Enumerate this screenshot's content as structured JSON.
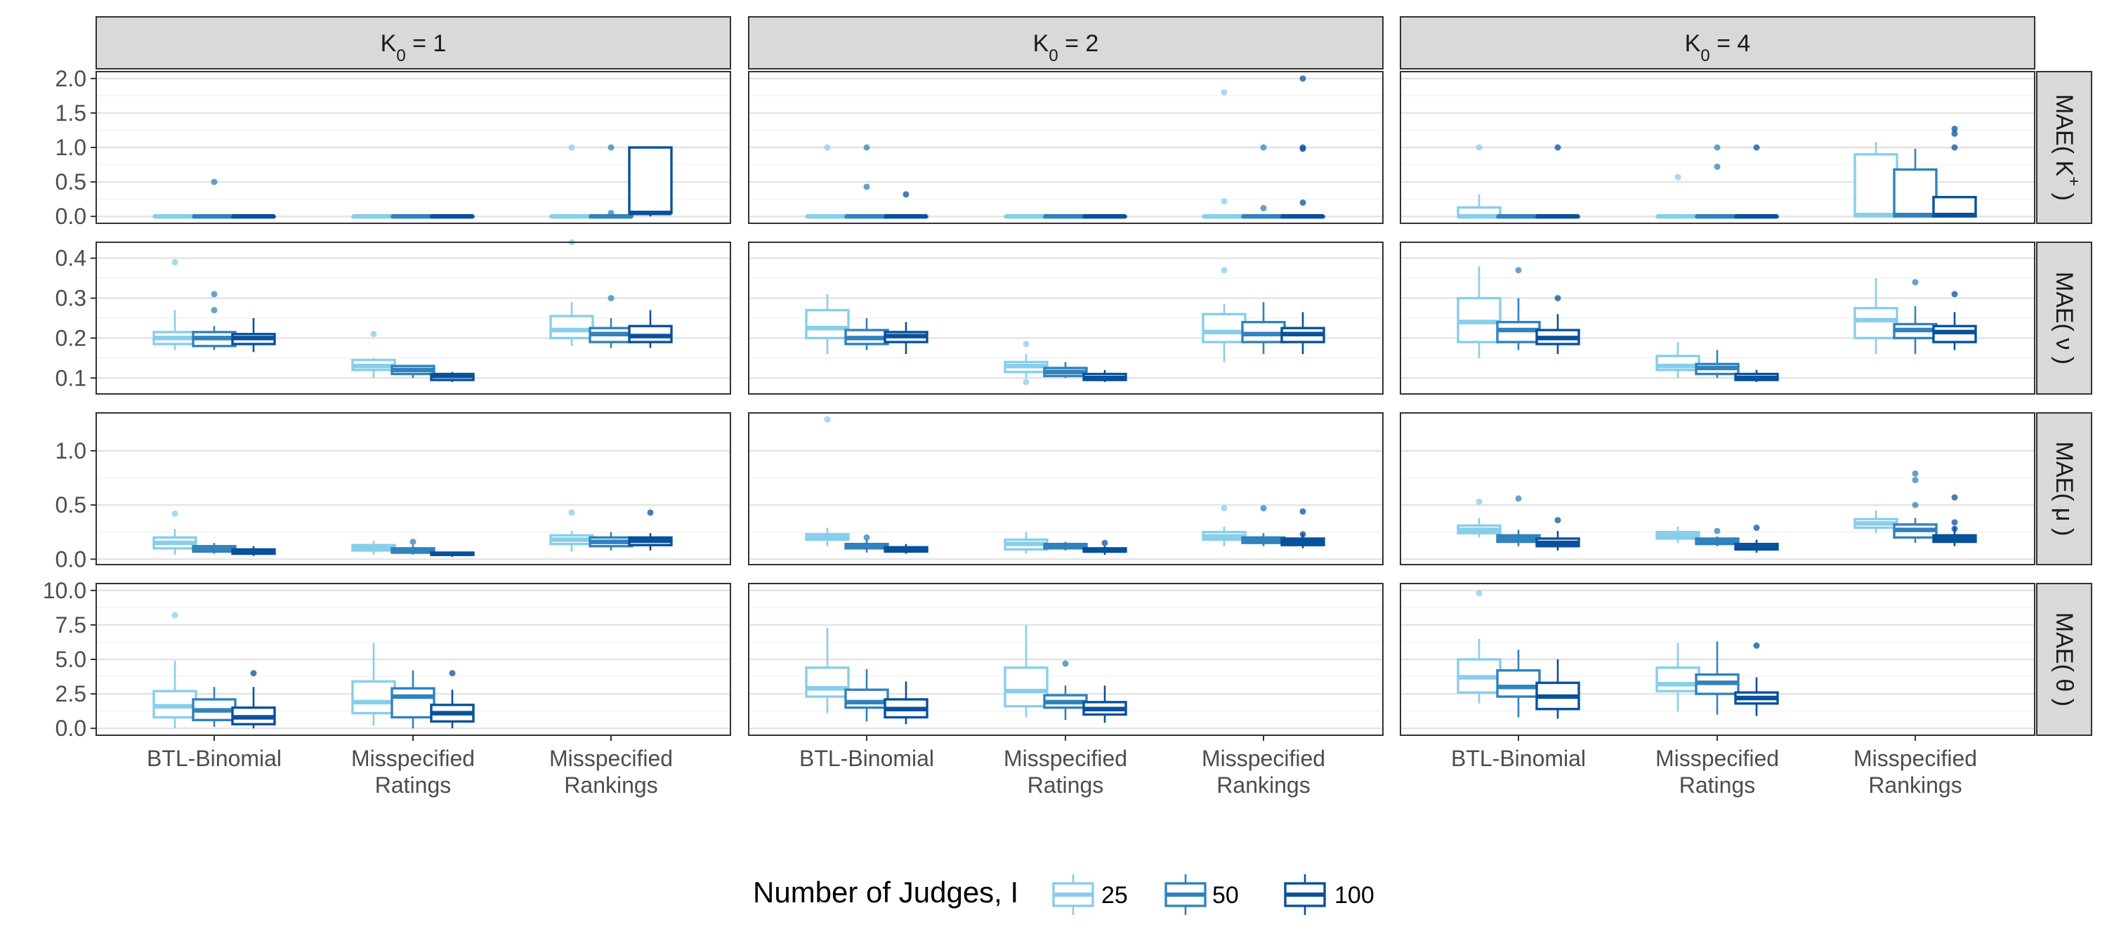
{
  "chart_data": {
    "type": "boxplot",
    "columns": [
      "K0 = 1",
      "K0 = 2",
      "K0 = 4"
    ],
    "rows": [
      "MAE(K+)",
      "MAE(ν)",
      "MAE(μ)",
      "MAE(θ)"
    ],
    "categories": [
      [
        "BTL-Binomial"
      ],
      [
        "Misspecified",
        "Ratings"
      ],
      [
        "Misspecified",
        "Rankings"
      ]
    ],
    "yticks": [
      [
        "0.0",
        "0.5",
        "1.0",
        "1.5",
        "2.0"
      ],
      [
        "0.1",
        "0.2",
        "0.3",
        "0.4"
      ],
      [
        "0.0",
        "0.5",
        "1.0"
      ],
      [
        "0.0",
        "2.5",
        "5.0",
        "7.5",
        "10.0"
      ]
    ],
    "yranges": [
      [
        -0.1,
        2.1
      ],
      [
        0.06,
        0.44
      ],
      [
        -0.05,
        1.35
      ],
      [
        -0.5,
        10.5
      ]
    ],
    "legend": {
      "title": "Number of Judges, I",
      "labels": [
        "25",
        "50",
        "100"
      ],
      "position": "bottom"
    },
    "colors": [
      "#87CEEB",
      "#3182BD",
      "#08519C"
    ],
    "boxes": [
      [
        [
          [
            0,
            0,
            0,
            0,
            0,
            []
          ],
          [
            0,
            0,
            0,
            0,
            0,
            [
              0.5
            ]
          ],
          [
            0,
            0,
            0,
            0,
            0,
            []
          ]
        ],
        [
          [
            0,
            0,
            0,
            0,
            0,
            []
          ],
          [
            0,
            0,
            0,
            0,
            0,
            []
          ],
          [
            0,
            0,
            0,
            0,
            0,
            []
          ]
        ],
        [
          [
            0,
            0,
            0,
            0,
            0,
            [
              1.0
            ]
          ],
          [
            0,
            0,
            0,
            0,
            0,
            [
              1.0,
              0.05
            ]
          ],
          [
            0,
            0.05,
            0.05,
            1,
            1,
            []
          ]
        ]
      ],
      [
        [
          [
            0,
            0,
            0,
            0,
            0,
            [
              1.0
            ]
          ],
          [
            0,
            0,
            0,
            0,
            0,
            [
              1.0,
              0.43
            ]
          ],
          [
            0,
            0,
            0,
            0,
            0,
            [
              0.32
            ]
          ]
        ],
        [
          [
            0,
            0,
            0,
            0,
            0,
            []
          ],
          [
            0,
            0,
            0,
            0,
            0,
            []
          ],
          [
            0,
            0,
            0,
            0,
            0,
            []
          ]
        ],
        [
          [
            0,
            0,
            0,
            0,
            0,
            [
              1.8,
              0.22
            ]
          ],
          [
            0,
            0,
            0,
            0,
            0,
            [
              1.0,
              0.12
            ]
          ],
          [
            0,
            0,
            0,
            0,
            0,
            [
              2.0,
              1.0,
              0.98,
              0.2
            ]
          ]
        ]
      ],
      [
        [
          [
            0,
            0,
            0,
            0.13,
            0.32,
            [
              1.0
            ]
          ],
          [
            0,
            0,
            0,
            0,
            0,
            []
          ],
          [
            0,
            0,
            0,
            0,
            0,
            [
              1.0
            ]
          ]
        ],
        [
          [
            0,
            0,
            0,
            0,
            0,
            [
              0.57
            ]
          ],
          [
            0,
            0,
            0,
            0,
            0,
            [
              1.0,
              0.72
            ]
          ],
          [
            0,
            0,
            0,
            0,
            0,
            [
              1.0
            ]
          ]
        ],
        [
          [
            0,
            0,
            0.02,
            0.9,
            1.08,
            []
          ],
          [
            0,
            0,
            0.02,
            0.68,
            0.98,
            []
          ],
          [
            0,
            0,
            0.02,
            0.28,
            0.28,
            [
              1.27,
              1.2,
              1.0
            ]
          ]
        ]
      ],
      [
        [
          [
            0.17,
            0.185,
            0.2,
            0.215,
            0.27,
            [
              0.39
            ]
          ],
          [
            0.17,
            0.18,
            0.2,
            0.215,
            0.23,
            [
              0.31,
              0.27
            ]
          ],
          [
            0.165,
            0.185,
            0.2,
            0.21,
            0.25,
            []
          ]
        ],
        [
          [
            0.1,
            0.12,
            0.13,
            0.145,
            0.15,
            [
              0.21
            ]
          ],
          [
            0.1,
            0.11,
            0.12,
            0.13,
            0.13,
            []
          ],
          [
            0.09,
            0.095,
            0.105,
            0.11,
            0.115,
            []
          ]
        ],
        [
          [
            0.18,
            0.2,
            0.22,
            0.255,
            0.29,
            [
              0.44
            ]
          ],
          [
            0.175,
            0.19,
            0.21,
            0.225,
            0.25,
            [
              0.3
            ]
          ],
          [
            0.175,
            0.19,
            0.205,
            0.23,
            0.27,
            []
          ]
        ]
      ],
      [
        [
          [
            0.16,
            0.2,
            0.225,
            0.27,
            0.31,
            []
          ],
          [
            0.17,
            0.185,
            0.2,
            0.22,
            0.25,
            []
          ],
          [
            0.16,
            0.19,
            0.205,
            0.215,
            0.24,
            []
          ]
        ],
        [
          [
            0.1,
            0.115,
            0.13,
            0.14,
            0.16,
            [
              0.185,
              0.09
            ]
          ],
          [
            0.1,
            0.105,
            0.115,
            0.125,
            0.14,
            []
          ],
          [
            0.09,
            0.095,
            0.1,
            0.11,
            0.12,
            []
          ]
        ],
        [
          [
            0.14,
            0.19,
            0.215,
            0.26,
            0.285,
            [
              0.37
            ]
          ],
          [
            0.16,
            0.19,
            0.21,
            0.24,
            0.29,
            []
          ],
          [
            0.16,
            0.19,
            0.21,
            0.225,
            0.265,
            []
          ]
        ]
      ],
      [
        [
          [
            0.15,
            0.19,
            0.24,
            0.3,
            0.38,
            []
          ],
          [
            0.17,
            0.19,
            0.22,
            0.24,
            0.3,
            [
              0.37
            ]
          ],
          [
            0.16,
            0.185,
            0.2,
            0.22,
            0.26,
            [
              0.3
            ]
          ]
        ],
        [
          [
            0.1,
            0.12,
            0.13,
            0.155,
            0.19,
            []
          ],
          [
            0.1,
            0.11,
            0.125,
            0.135,
            0.17,
            []
          ],
          [
            0.09,
            0.095,
            0.1,
            0.11,
            0.12,
            []
          ]
        ],
        [
          [
            0.16,
            0.2,
            0.245,
            0.275,
            0.35,
            []
          ],
          [
            0.16,
            0.2,
            0.22,
            0.235,
            0.28,
            [
              0.34
            ]
          ],
          [
            0.17,
            0.19,
            0.215,
            0.23,
            0.265,
            [
              0.31
            ]
          ]
        ]
      ],
      [
        [
          [
            0.04,
            0.1,
            0.15,
            0.2,
            0.28,
            [
              0.42
            ]
          ],
          [
            0.05,
            0.07,
            0.1,
            0.12,
            0.15,
            []
          ],
          [
            0.03,
            0.05,
            0.07,
            0.09,
            0.12,
            []
          ]
        ],
        [
          [
            0.04,
            0.08,
            0.11,
            0.13,
            0.17,
            []
          ],
          [
            0.04,
            0.06,
            0.08,
            0.1,
            0.13,
            [
              0.16
            ]
          ],
          [
            0.02,
            0.04,
            0.05,
            0.06,
            0.07,
            []
          ]
        ],
        [
          [
            0.07,
            0.14,
            0.18,
            0.22,
            0.26,
            [
              0.43
            ]
          ],
          [
            0.08,
            0.12,
            0.16,
            0.2,
            0.25,
            []
          ],
          [
            0.08,
            0.13,
            0.17,
            0.2,
            0.24,
            [
              0.43
            ]
          ]
        ]
      ],
      [
        [
          [
            0.12,
            0.18,
            0.21,
            0.23,
            0.29,
            [
              1.29
            ]
          ],
          [
            0.06,
            0.1,
            0.12,
            0.14,
            0.18,
            [
              0.2
            ]
          ],
          [
            0.05,
            0.07,
            0.09,
            0.11,
            0.14,
            []
          ]
        ],
        [
          [
            0.05,
            0.09,
            0.14,
            0.18,
            0.25,
            []
          ],
          [
            0.08,
            0.1,
            0.12,
            0.14,
            0.16,
            []
          ],
          [
            0.04,
            0.07,
            0.08,
            0.1,
            0.12,
            [
              0.15
            ]
          ]
        ],
        [
          [
            0.12,
            0.18,
            0.21,
            0.25,
            0.3,
            [
              0.47
            ]
          ],
          [
            0.12,
            0.15,
            0.17,
            0.2,
            0.24,
            [
              0.47
            ]
          ],
          [
            0.1,
            0.13,
            0.16,
            0.19,
            0.24,
            [
              0.44,
              0.23
            ]
          ]
        ]
      ],
      [
        [
          [
            0.2,
            0.24,
            0.27,
            0.31,
            0.38,
            [
              0.53
            ]
          ],
          [
            0.12,
            0.16,
            0.19,
            0.22,
            0.27,
            [
              0.56
            ]
          ],
          [
            0.08,
            0.12,
            0.15,
            0.19,
            0.26,
            [
              0.36
            ]
          ]
        ],
        [
          [
            0.15,
            0.19,
            0.22,
            0.25,
            0.3,
            []
          ],
          [
            0.12,
            0.14,
            0.17,
            0.19,
            0.21,
            [
              0.26
            ]
          ],
          [
            0.06,
            0.09,
            0.11,
            0.14,
            0.18,
            [
              0.29
            ]
          ]
        ],
        [
          [
            0.24,
            0.29,
            0.33,
            0.37,
            0.45,
            []
          ],
          [
            0.15,
            0.2,
            0.27,
            0.32,
            0.38,
            [
              0.79,
              0.73,
              0.5
            ]
          ],
          [
            0.12,
            0.16,
            0.19,
            0.22,
            0.3,
            [
              0.57,
              0.34,
              0.28
            ]
          ]
        ]
      ],
      [
        [
          [
            0,
            0.8,
            1.6,
            2.7,
            4.9,
            [
              8.2
            ]
          ],
          [
            0.1,
            0.6,
            1.3,
            2.1,
            3.0,
            []
          ],
          [
            0,
            0.3,
            0.8,
            1.5,
            3.0,
            [
              4.0
            ]
          ]
        ],
        [
          [
            0.2,
            1.1,
            1.9,
            3.4,
            6.2,
            []
          ],
          [
            0,
            0.8,
            2.3,
            2.9,
            4.2,
            []
          ],
          [
            0,
            0.5,
            1.1,
            1.7,
            2.8,
            [
              4.0
            ]
          ]
        ],
        [
          null,
          null,
          null
        ]
      ],
      [
        [
          [
            1.1,
            2.3,
            2.9,
            4.4,
            7.3,
            []
          ],
          [
            0.5,
            1.5,
            1.9,
            2.8,
            4.3,
            []
          ],
          [
            0.3,
            0.8,
            1.4,
            2.1,
            3.4,
            []
          ]
        ],
        [
          [
            0.8,
            1.6,
            2.7,
            4.4,
            7.5,
            []
          ],
          [
            0.6,
            1.5,
            1.9,
            2.4,
            3.1,
            [
              4.7
            ]
          ],
          [
            0.4,
            1.0,
            1.4,
            1.9,
            3.1,
            []
          ]
        ],
        [
          null,
          null,
          null
        ]
      ],
      [
        [
          [
            1.8,
            2.6,
            3.7,
            5.0,
            6.5,
            [
              9.8
            ]
          ],
          [
            0.8,
            2.3,
            3.0,
            4.2,
            5.7,
            []
          ],
          [
            0.7,
            1.4,
            2.3,
            3.3,
            5.0,
            []
          ]
        ],
        [
          [
            1.2,
            2.7,
            3.2,
            4.4,
            6.2,
            []
          ],
          [
            1.0,
            2.5,
            3.3,
            3.9,
            6.3,
            []
          ],
          [
            0.9,
            1.8,
            2.2,
            2.6,
            3.7,
            [
              6.0
            ]
          ]
        ],
        [
          null,
          null,
          null
        ]
      ]
    ]
  }
}
